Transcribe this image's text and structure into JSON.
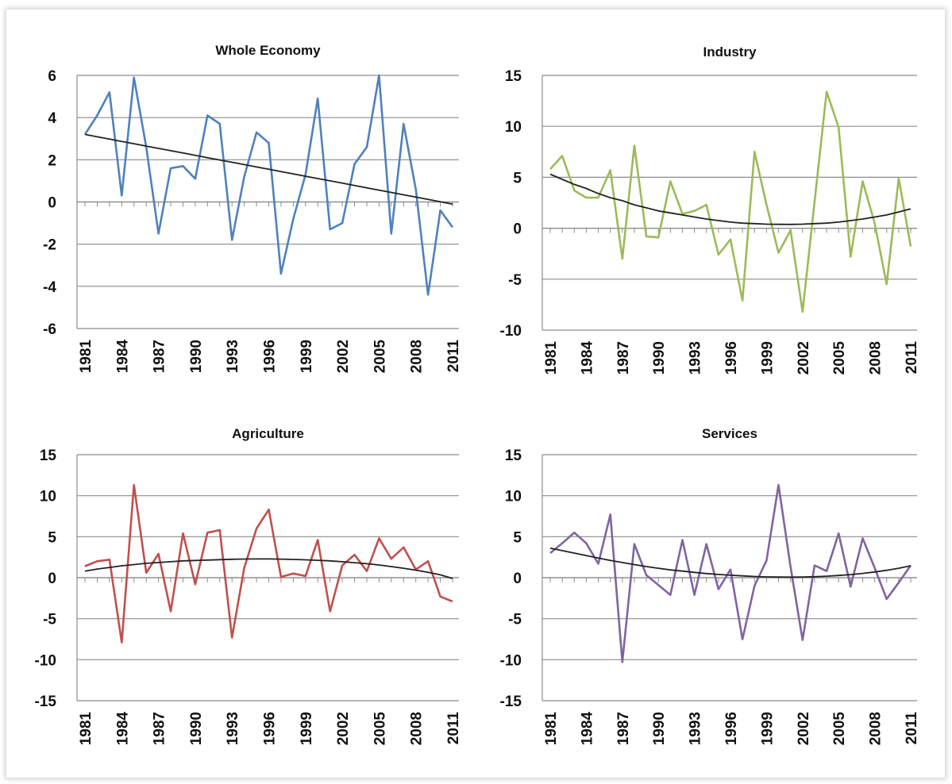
{
  "chart_data": [
    {
      "type": "line",
      "title": "Whole Economy",
      "xlabel": "",
      "ylabel": "",
      "x_tick_labels": [
        "1981",
        "1984",
        "1987",
        "1990",
        "1993",
        "1996",
        "1999",
        "2002",
        "2005",
        "2008",
        "2011"
      ],
      "y_tick_labels": [
        "-6",
        "-4",
        "-2",
        "0",
        "2",
        "4",
        "6"
      ],
      "ylim": [
        -6,
        6
      ],
      "yticks": [
        -6,
        -4,
        -2,
        0,
        2,
        4,
        6
      ],
      "grid": "horizontal",
      "years": [
        1981,
        1982,
        1983,
        1984,
        1985,
        1986,
        1987,
        1988,
        1989,
        1990,
        1991,
        1992,
        1993,
        1994,
        1995,
        1996,
        1997,
        1998,
        1999,
        2000,
        2001,
        2002,
        2003,
        2004,
        2005,
        2006,
        2007,
        2008,
        2009,
        2010,
        2011
      ],
      "series": [
        {
          "values": [
            3.2,
            4.1,
            5.2,
            0.3,
            5.9,
            2.6,
            -1.5,
            1.6,
            1.7,
            1.1,
            4.1,
            3.7,
            -1.8,
            1.2,
            3.3,
            2.8,
            -3.4,
            -0.8,
            1.3,
            4.9,
            -1.3,
            -1.0,
            1.8,
            2.6,
            6.0,
            -1.5,
            3.7,
            0.6,
            -4.4,
            -0.4,
            -1.2
          ],
          "color": "#4f81bd"
        },
        {
          "values": [
            3.2,
            3.09,
            2.98,
            2.87,
            2.76,
            2.65,
            2.54,
            2.43,
            2.32,
            2.21,
            2.1,
            1.99,
            1.88,
            1.77,
            1.66,
            1.55,
            1.44,
            1.33,
            1.22,
            1.11,
            1.0,
            0.89,
            0.78,
            0.67,
            0.56,
            0.45,
            0.34,
            0.23,
            0.12,
            0.01,
            -0.1
          ],
          "color": "#222222"
        }
      ]
    },
    {
      "type": "line",
      "title": "Industry",
      "xlabel": "",
      "ylabel": "",
      "x_tick_labels": [
        "1981",
        "1984",
        "1987",
        "1990",
        "1993",
        "1996",
        "1999",
        "2002",
        "2005",
        "2008",
        "2011"
      ],
      "y_tick_labels": [
        "-10",
        "-5",
        "0",
        "5",
        "10",
        "15"
      ],
      "ylim": [
        -10,
        15
      ],
      "yticks": [
        -10,
        -5,
        0,
        5,
        10,
        15
      ],
      "grid": "horizontal",
      "years": [
        1981,
        1982,
        1983,
        1984,
        1985,
        1986,
        1987,
        1988,
        1989,
        1990,
        1991,
        1992,
        1993,
        1994,
        1995,
        1996,
        1997,
        1998,
        1999,
        2000,
        2001,
        2002,
        2003,
        2004,
        2005,
        2006,
        2007,
        2008,
        2009,
        2010,
        2011
      ],
      "series": [
        {
          "values": [
            5.8,
            7.1,
            3.7,
            3.0,
            3.0,
            5.7,
            -3.0,
            8.1,
            -0.8,
            -0.9,
            4.6,
            1.4,
            1.7,
            2.3,
            -2.6,
            -1.1,
            -7.1,
            7.5,
            2.3,
            -2.4,
            -0.2,
            -8.2,
            2.6,
            13.4,
            9.9,
            -2.8,
            4.6,
            0.5,
            -5.5,
            4.9,
            -1.8
          ],
          "color": "#9bbb59"
        },
        {
          "values": [
            5.3,
            4.8,
            4.3,
            3.9,
            3.4,
            3.0,
            2.7,
            2.3,
            2.0,
            1.7,
            1.5,
            1.3,
            1.1,
            0.9,
            0.75,
            0.6,
            0.5,
            0.45,
            0.4,
            0.38,
            0.37,
            0.4,
            0.45,
            0.5,
            0.6,
            0.75,
            0.9,
            1.1,
            1.3,
            1.6,
            1.9
          ],
          "color": "#222222"
        }
      ]
    },
    {
      "type": "line",
      "title": "Agriculture",
      "xlabel": "",
      "ylabel": "",
      "x_tick_labels": [
        "1981",
        "1984",
        "1987",
        "1990",
        "1993",
        "1996",
        "1999",
        "2002",
        "2005",
        "2008",
        "2011"
      ],
      "y_tick_labels": [
        "-15",
        "-10",
        "-5",
        "0",
        "5",
        "10",
        "15"
      ],
      "ylim": [
        -15,
        15
      ],
      "yticks": [
        -15,
        -10,
        -5,
        0,
        5,
        10,
        15
      ],
      "grid": "horizontal",
      "years": [
        1981,
        1982,
        1983,
        1984,
        1985,
        1986,
        1987,
        1988,
        1989,
        1990,
        1991,
        1992,
        1993,
        1994,
        1995,
        1996,
        1997,
        1998,
        1999,
        2000,
        2001,
        2002,
        2003,
        2004,
        2005,
        2006,
        2007,
        2008,
        2009,
        2010,
        2011
      ],
      "series": [
        {
          "values": [
            1.4,
            2.0,
            2.2,
            -7.9,
            11.3,
            0.6,
            2.9,
            -4.1,
            5.4,
            -0.8,
            5.5,
            5.8,
            -7.3,
            1.2,
            6.0,
            8.3,
            0.1,
            0.5,
            0.2,
            4.6,
            -4.1,
            1.5,
            2.8,
            0.8,
            4.8,
            2.3,
            3.7,
            1.0,
            2.0,
            -2.3,
            -2.9
          ],
          "color": "#c0504d"
        },
        {
          "values": [
            0.8,
            1.05,
            1.25,
            1.45,
            1.6,
            1.75,
            1.85,
            1.95,
            2.05,
            2.1,
            2.15,
            2.2,
            2.25,
            2.27,
            2.28,
            2.28,
            2.26,
            2.23,
            2.18,
            2.12,
            2.05,
            1.95,
            1.83,
            1.7,
            1.55,
            1.35,
            1.15,
            0.92,
            0.65,
            0.35,
            -0.1
          ],
          "color": "#222222"
        }
      ]
    },
    {
      "type": "line",
      "title": "Services",
      "xlabel": "",
      "ylabel": "",
      "x_tick_labels": [
        "1981",
        "1984",
        "1987",
        "1990",
        "1993",
        "1996",
        "1999",
        "2002",
        "2005",
        "2008",
        "2011"
      ],
      "y_tick_labels": [
        "-15",
        "-10",
        "-5",
        "0",
        "5",
        "10",
        "15"
      ],
      "ylim": [
        -15,
        15
      ],
      "yticks": [
        -15,
        -10,
        -5,
        0,
        5,
        10,
        15
      ],
      "grid": "horizontal",
      "years": [
        1981,
        1982,
        1983,
        1984,
        1985,
        1986,
        1987,
        1988,
        1989,
        1990,
        1991,
        1992,
        1993,
        1994,
        1995,
        1996,
        1997,
        1998,
        1999,
        2000,
        2001,
        2002,
        2003,
        2004,
        2005,
        2006,
        2007,
        2008,
        2009,
        2010,
        2011
      ],
      "series": [
        {
          "values": [
            3.0,
            4.2,
            5.5,
            4.2,
            1.7,
            7.7,
            -10.3,
            4.1,
            0.3,
            -0.9,
            -2.1,
            4.6,
            -2.1,
            4.1,
            -1.4,
            1.0,
            -7.5,
            -1.0,
            2.1,
            11.3,
            1.3,
            -7.6,
            1.5,
            0.8,
            5.4,
            -1.1,
            4.8,
            1.2,
            -2.6,
            -0.6,
            1.5
          ],
          "color": "#8064a2"
        },
        {
          "values": [
            3.6,
            3.3,
            3.0,
            2.7,
            2.4,
            2.1,
            1.85,
            1.6,
            1.35,
            1.15,
            0.95,
            0.8,
            0.65,
            0.5,
            0.4,
            0.3,
            0.22,
            0.15,
            0.1,
            0.08,
            0.07,
            0.08,
            0.12,
            0.18,
            0.27,
            0.38,
            0.52,
            0.7,
            0.9,
            1.15,
            1.45
          ],
          "color": "#222222"
        }
      ]
    }
  ]
}
